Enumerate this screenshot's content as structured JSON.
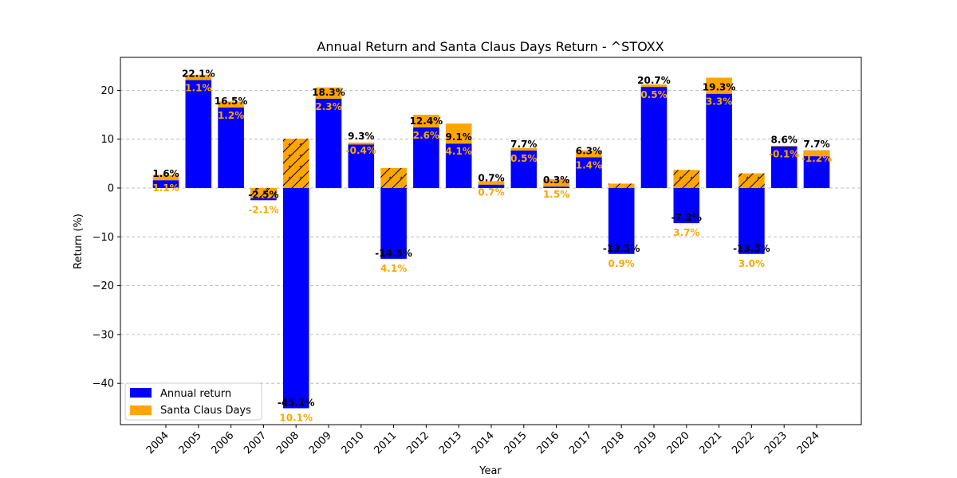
{
  "chart_data": {
    "type": "bar",
    "title": "Annual Return and Santa Claus Days Return - ^STOXX",
    "xlabel": "Year",
    "ylabel": "Return (%)",
    "ylim": [
      -48.5,
      26.7
    ],
    "yticks": [
      20,
      10,
      0,
      -10,
      -20,
      -30,
      -40
    ],
    "ytick_labels": [
      "20",
      "10",
      "0",
      "−10",
      "−20",
      "−30",
      "−40"
    ],
    "grid": "horizontal dashed",
    "legend_position": "lower-left",
    "categories": [
      "2004",
      "2005",
      "2006",
      "2007",
      "2008",
      "2009",
      "2010",
      "2011",
      "2012",
      "2013",
      "2014",
      "2015",
      "2016",
      "2017",
      "2018",
      "2019",
      "2020",
      "2021",
      "2022",
      "2023",
      "2024"
    ],
    "series": [
      {
        "name": "Annual return",
        "color": "#0000FF",
        "values": [
          1.6,
          22.1,
          16.5,
          -2.5,
          -45.1,
          18.3,
          9.3,
          -14.5,
          12.4,
          9.1,
          0.7,
          7.7,
          0.3,
          6.3,
          -13.5,
          20.7,
          -7.2,
          19.3,
          -13.5,
          8.6,
          7.7
        ],
        "labels": [
          "1.6%",
          "22.1%",
          "16.5%",
          "-2.5%",
          "-45.1%",
          "18.3%",
          "9.3%",
          "-14.5%",
          "12.4%",
          "9.1%",
          "0.7%",
          "7.7%",
          "0.3%",
          "6.3%",
          "-13.5%",
          "20.7%",
          "-7.2%",
          "19.3%",
          "-13.5%",
          "8.6%",
          "7.7%"
        ]
      },
      {
        "name": "Santa Claus Days",
        "color": "#FFA500",
        "values": [
          1.1,
          1.1,
          1.2,
          -2.1,
          10.1,
          2.3,
          -0.4,
          4.1,
          2.6,
          4.1,
          0.7,
          0.5,
          1.5,
          1.4,
          0.9,
          0.5,
          3.7,
          3.3,
          3.0,
          -0.1,
          -1.2
        ],
        "labels": [
          "1.1%",
          "1.1%",
          "1.2%",
          "-2.1%",
          "10.1%",
          "2.3%",
          "-0.4%",
          "4.1%",
          "2.6%",
          "4.1%",
          "0.7%",
          "0.5%",
          "1.5%",
          "1.4%",
          "0.9%",
          "0.5%",
          "3.7%",
          "3.3%",
          "3.0%",
          "-0.1%",
          "-1.2%"
        ]
      }
    ]
  }
}
